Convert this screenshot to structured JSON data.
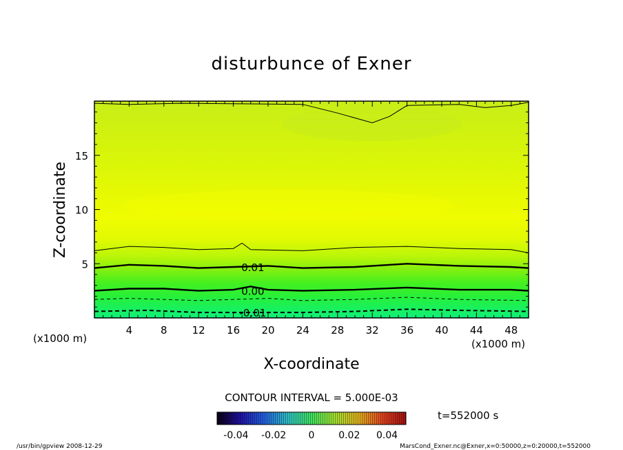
{
  "chart_data": {
    "type": "contour",
    "title": "disturbunce of Exner",
    "xlabel": "X-coordinate",
    "ylabel": "Z-coordinate",
    "x_unit_left": "(x1000 m)",
    "x_unit_right": "(x1000 m)",
    "xlim": [
      0,
      50
    ],
    "ylim": [
      0,
      20
    ],
    "x_ticks": [
      4,
      8,
      12,
      16,
      20,
      24,
      28,
      32,
      36,
      40,
      44,
      48
    ],
    "y_ticks": [
      5,
      10,
      15
    ],
    "contour_interval_label": "CONTOUR INTERVAL = 5.000E-03",
    "contour_labels": [
      {
        "text": "0.01",
        "x": 16.5,
        "z": 4.7
      },
      {
        "text": "0.00",
        "x": 16.5,
        "z": 2.5
      },
      {
        "text": "-0.01",
        "x": 16.5,
        "z": 0.5
      }
    ],
    "contour_lines": [
      {
        "level": 0.005,
        "style": "thin",
        "points": [
          [
            0,
            6.2
          ],
          [
            4,
            6.6
          ],
          [
            8,
            6.5
          ],
          [
            12,
            6.3
          ],
          [
            16,
            6.4
          ],
          [
            17,
            6.9
          ],
          [
            18,
            6.3
          ],
          [
            24,
            6.2
          ],
          [
            30,
            6.5
          ],
          [
            36,
            6.6
          ],
          [
            42,
            6.4
          ],
          [
            48,
            6.3
          ],
          [
            50,
            6.0
          ]
        ]
      },
      {
        "level": 0.01,
        "style": "bold",
        "points": [
          [
            0,
            4.6
          ],
          [
            4,
            4.9
          ],
          [
            8,
            4.8
          ],
          [
            12,
            4.6
          ],
          [
            16,
            4.7
          ],
          [
            20,
            4.8
          ],
          [
            24,
            4.6
          ],
          [
            30,
            4.7
          ],
          [
            36,
            5.0
          ],
          [
            42,
            4.8
          ],
          [
            48,
            4.7
          ],
          [
            50,
            4.6
          ]
        ]
      },
      {
        "level": 0.0,
        "style": "bold",
        "points": [
          [
            0,
            2.5
          ],
          [
            4,
            2.7
          ],
          [
            8,
            2.7
          ],
          [
            12,
            2.5
          ],
          [
            16,
            2.6
          ],
          [
            18,
            2.9
          ],
          [
            20,
            2.6
          ],
          [
            24,
            2.5
          ],
          [
            30,
            2.6
          ],
          [
            36,
            2.8
          ],
          [
            42,
            2.6
          ],
          [
            48,
            2.6
          ],
          [
            50,
            2.5
          ]
        ]
      },
      {
        "level": -0.005,
        "style": "dashed",
        "points": [
          [
            0,
            1.7
          ],
          [
            4,
            1.8
          ],
          [
            8,
            1.7
          ],
          [
            12,
            1.6
          ],
          [
            16,
            1.7
          ],
          [
            20,
            1.8
          ],
          [
            24,
            1.6
          ],
          [
            30,
            1.7
          ],
          [
            36,
            1.9
          ],
          [
            42,
            1.7
          ],
          [
            50,
            1.6
          ]
        ]
      },
      {
        "level": -0.01,
        "style": "dashed-bold",
        "points": [
          [
            0,
            0.6
          ],
          [
            6,
            0.7
          ],
          [
            12,
            0.5
          ],
          [
            16,
            0.5
          ],
          [
            24,
            0.5
          ],
          [
            30,
            0.6
          ],
          [
            36,
            0.8
          ],
          [
            42,
            0.7
          ],
          [
            50,
            0.6
          ]
        ]
      },
      {
        "level": 0.0,
        "style": "thin",
        "points": [
          [
            0,
            19.8
          ],
          [
            4,
            19.7
          ],
          [
            10,
            19.8
          ],
          [
            24,
            19.7
          ],
          [
            28,
            18.9
          ],
          [
            32,
            18.0
          ],
          [
            34,
            18.6
          ],
          [
            36,
            19.6
          ],
          [
            42,
            19.7
          ],
          [
            45,
            19.4
          ],
          [
            48,
            19.6
          ],
          [
            50,
            19.9
          ]
        ]
      }
    ],
    "colorbar": {
      "tick_labels": [
        "-0.04",
        "-0.02",
        "0",
        "0.02",
        "0.04"
      ],
      "tick_values": [
        -0.04,
        -0.02,
        0,
        0.02,
        0.04
      ],
      "range": [
        -0.05,
        0.05
      ]
    },
    "time_label": "t=552000 s"
  },
  "footer": {
    "left": "/usr/bin/gpview   2008-12-29",
    "right": "MarsCond_Exner.nc@Exner,x=0:50000,z=0:20000,t=552000"
  }
}
